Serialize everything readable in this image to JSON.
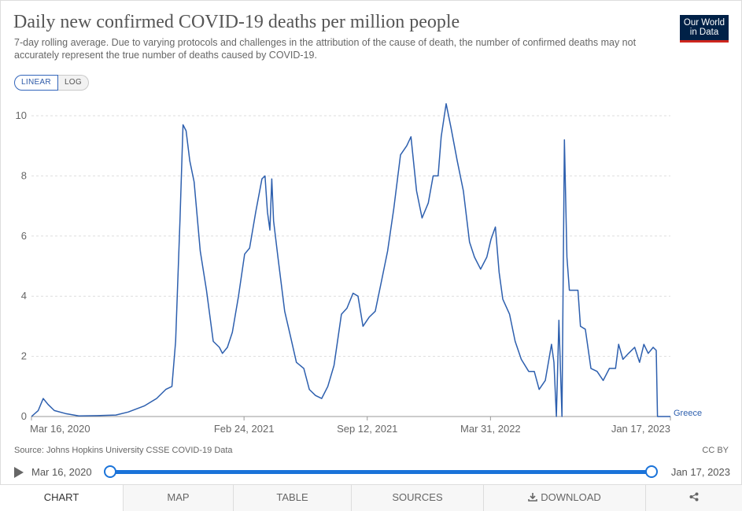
{
  "header": {
    "title": "Daily new confirmed COVID-19 deaths per million people",
    "subtitle": "7-day rolling average. Due to varying protocols and challenges in the attribution of the cause of death, the number of confirmed deaths may not accurately represent the true number of deaths caused by COVID-19.",
    "logo_line1": "Our World",
    "logo_line2": "in Data"
  },
  "scale_toggle": {
    "linear_label": "LINEAR",
    "log_label": "LOG",
    "selected": "LINEAR"
  },
  "colors": {
    "series": "#2d5fae",
    "grid": "#dddddd",
    "accent": "#1a73d9",
    "logo_bg": "#002147",
    "logo_bar": "#ce261e"
  },
  "chart_data": {
    "type": "line",
    "title": "Daily new confirmed COVID-19 deaths per million people",
    "ylim": [
      0,
      10
    ],
    "yticks": [
      "0",
      "2",
      "4",
      "6",
      "8",
      "10"
    ],
    "xlim": [
      "2020-03-16",
      "2023-01-17"
    ],
    "xticks": [
      "Mar 16, 2020",
      "Feb 24, 2021",
      "Sep 12, 2021",
      "Mar 31, 2022",
      "Jan 17, 2023"
    ],
    "grid": true,
    "series": [
      {
        "name": "Greece",
        "color": "#2d5fae",
        "points": [
          [
            "2020-03-16",
            0.0
          ],
          [
            "2020-03-27",
            0.2
          ],
          [
            "2020-04-04",
            0.6
          ],
          [
            "2020-04-12",
            0.4
          ],
          [
            "2020-04-22",
            0.2
          ],
          [
            "2020-05-10",
            0.1
          ],
          [
            "2020-06-01",
            0.02
          ],
          [
            "2020-07-01",
            0.03
          ],
          [
            "2020-07-31",
            0.05
          ],
          [
            "2020-08-20",
            0.15
          ],
          [
            "2020-09-15",
            0.35
          ],
          [
            "2020-10-05",
            0.6
          ],
          [
            "2020-10-20",
            0.9
          ],
          [
            "2020-10-30",
            1.0
          ],
          [
            "2020-11-05",
            2.5
          ],
          [
            "2020-11-12",
            6.5
          ],
          [
            "2020-11-17",
            9.7
          ],
          [
            "2020-11-22",
            9.5
          ],
          [
            "2020-11-28",
            8.5
          ],
          [
            "2020-12-05",
            7.8
          ],
          [
            "2020-12-15",
            5.5
          ],
          [
            "2020-12-25",
            4.2
          ],
          [
            "2021-01-05",
            2.5
          ],
          [
            "2021-01-15",
            2.3
          ],
          [
            "2021-01-20",
            2.1
          ],
          [
            "2021-01-28",
            2.3
          ],
          [
            "2021-02-05",
            2.8
          ],
          [
            "2021-02-15",
            4.0
          ],
          [
            "2021-02-25",
            5.4
          ],
          [
            "2021-03-05",
            5.6
          ],
          [
            "2021-03-15",
            6.8
          ],
          [
            "2021-03-25",
            7.9
          ],
          [
            "2021-03-30",
            8.0
          ],
          [
            "2021-04-03",
            6.8
          ],
          [
            "2021-04-07",
            6.2
          ],
          [
            "2021-04-10",
            7.9
          ],
          [
            "2021-04-13",
            6.5
          ],
          [
            "2021-04-20",
            5.3
          ],
          [
            "2021-05-01",
            3.5
          ],
          [
            "2021-05-10",
            2.7
          ],
          [
            "2021-05-20",
            1.8
          ],
          [
            "2021-06-01",
            1.6
          ],
          [
            "2021-06-10",
            0.9
          ],
          [
            "2021-06-20",
            0.7
          ],
          [
            "2021-06-30",
            0.6
          ],
          [
            "2021-07-10",
            1.0
          ],
          [
            "2021-07-20",
            1.7
          ],
          [
            "2021-08-01",
            3.4
          ],
          [
            "2021-08-10",
            3.6
          ],
          [
            "2021-08-20",
            4.1
          ],
          [
            "2021-08-28",
            4.0
          ],
          [
            "2021-09-05",
            3.0
          ],
          [
            "2021-09-15",
            3.3
          ],
          [
            "2021-09-25",
            3.5
          ],
          [
            "2021-10-05",
            4.5
          ],
          [
            "2021-10-15",
            5.5
          ],
          [
            "2021-10-25",
            6.9
          ],
          [
            "2021-11-05",
            8.7
          ],
          [
            "2021-11-15",
            9.0
          ],
          [
            "2021-11-22",
            9.3
          ],
          [
            "2021-12-01",
            7.5
          ],
          [
            "2021-12-10",
            6.6
          ],
          [
            "2021-12-20",
            7.1
          ],
          [
            "2021-12-28",
            8.0
          ],
          [
            "2022-01-05",
            8.0
          ],
          [
            "2022-01-10",
            9.3
          ],
          [
            "2022-01-18",
            10.4
          ],
          [
            "2022-01-26",
            9.6
          ],
          [
            "2022-02-05",
            8.5
          ],
          [
            "2022-02-15",
            7.5
          ],
          [
            "2022-02-25",
            5.8
          ],
          [
            "2022-03-05",
            5.3
          ],
          [
            "2022-03-15",
            4.9
          ],
          [
            "2022-03-25",
            5.3
          ],
          [
            "2022-04-01",
            5.9
          ],
          [
            "2022-04-08",
            6.3
          ],
          [
            "2022-04-14",
            4.8
          ],
          [
            "2022-04-20",
            3.9
          ],
          [
            "2022-05-01",
            3.4
          ],
          [
            "2022-05-10",
            2.5
          ],
          [
            "2022-05-20",
            1.9
          ],
          [
            "2022-06-01",
            1.5
          ],
          [
            "2022-06-10",
            1.5
          ],
          [
            "2022-06-18",
            0.9
          ],
          [
            "2022-06-28",
            1.2
          ],
          [
            "2022-07-08",
            2.4
          ],
          [
            "2022-07-12",
            1.8
          ],
          [
            "2022-07-16",
            0.0
          ],
          [
            "2022-07-20",
            3.2
          ],
          [
            "2022-07-25",
            0.0
          ],
          [
            "2022-07-29",
            9.2
          ],
          [
            "2022-08-02",
            5.3
          ],
          [
            "2022-08-06",
            4.2
          ],
          [
            "2022-08-20",
            4.2
          ],
          [
            "2022-08-24",
            3.0
          ],
          [
            "2022-09-01",
            2.9
          ],
          [
            "2022-09-10",
            1.6
          ],
          [
            "2022-09-20",
            1.5
          ],
          [
            "2022-09-30",
            1.2
          ],
          [
            "2022-10-10",
            1.6
          ],
          [
            "2022-10-20",
            1.6
          ],
          [
            "2022-10-25",
            2.4
          ],
          [
            "2022-11-01",
            1.9
          ],
          [
            "2022-11-10",
            2.1
          ],
          [
            "2022-11-20",
            2.3
          ],
          [
            "2022-11-28",
            1.8
          ],
          [
            "2022-12-05",
            2.4
          ],
          [
            "2022-12-12",
            2.1
          ],
          [
            "2022-12-20",
            2.3
          ],
          [
            "2022-12-25",
            2.2
          ],
          [
            "2022-12-27",
            0.0
          ],
          [
            "2023-01-17",
            0.0
          ]
        ]
      }
    ]
  },
  "footer": {
    "source": "Source: Johns Hopkins University CSSE COVID-19 Data",
    "license": "CC BY"
  },
  "timeline": {
    "start_label": "Mar 16, 2020",
    "end_label": "Jan 17, 2023",
    "start_position": 0,
    "end_position": 1
  },
  "tabs": [
    {
      "label": "CHART",
      "active": true
    },
    {
      "label": "MAP"
    },
    {
      "label": "TABLE"
    },
    {
      "label": "SOURCES"
    },
    {
      "label": "DOWNLOAD",
      "icon": "download-icon"
    },
    {
      "label": "",
      "icon": "share-icon"
    }
  ]
}
